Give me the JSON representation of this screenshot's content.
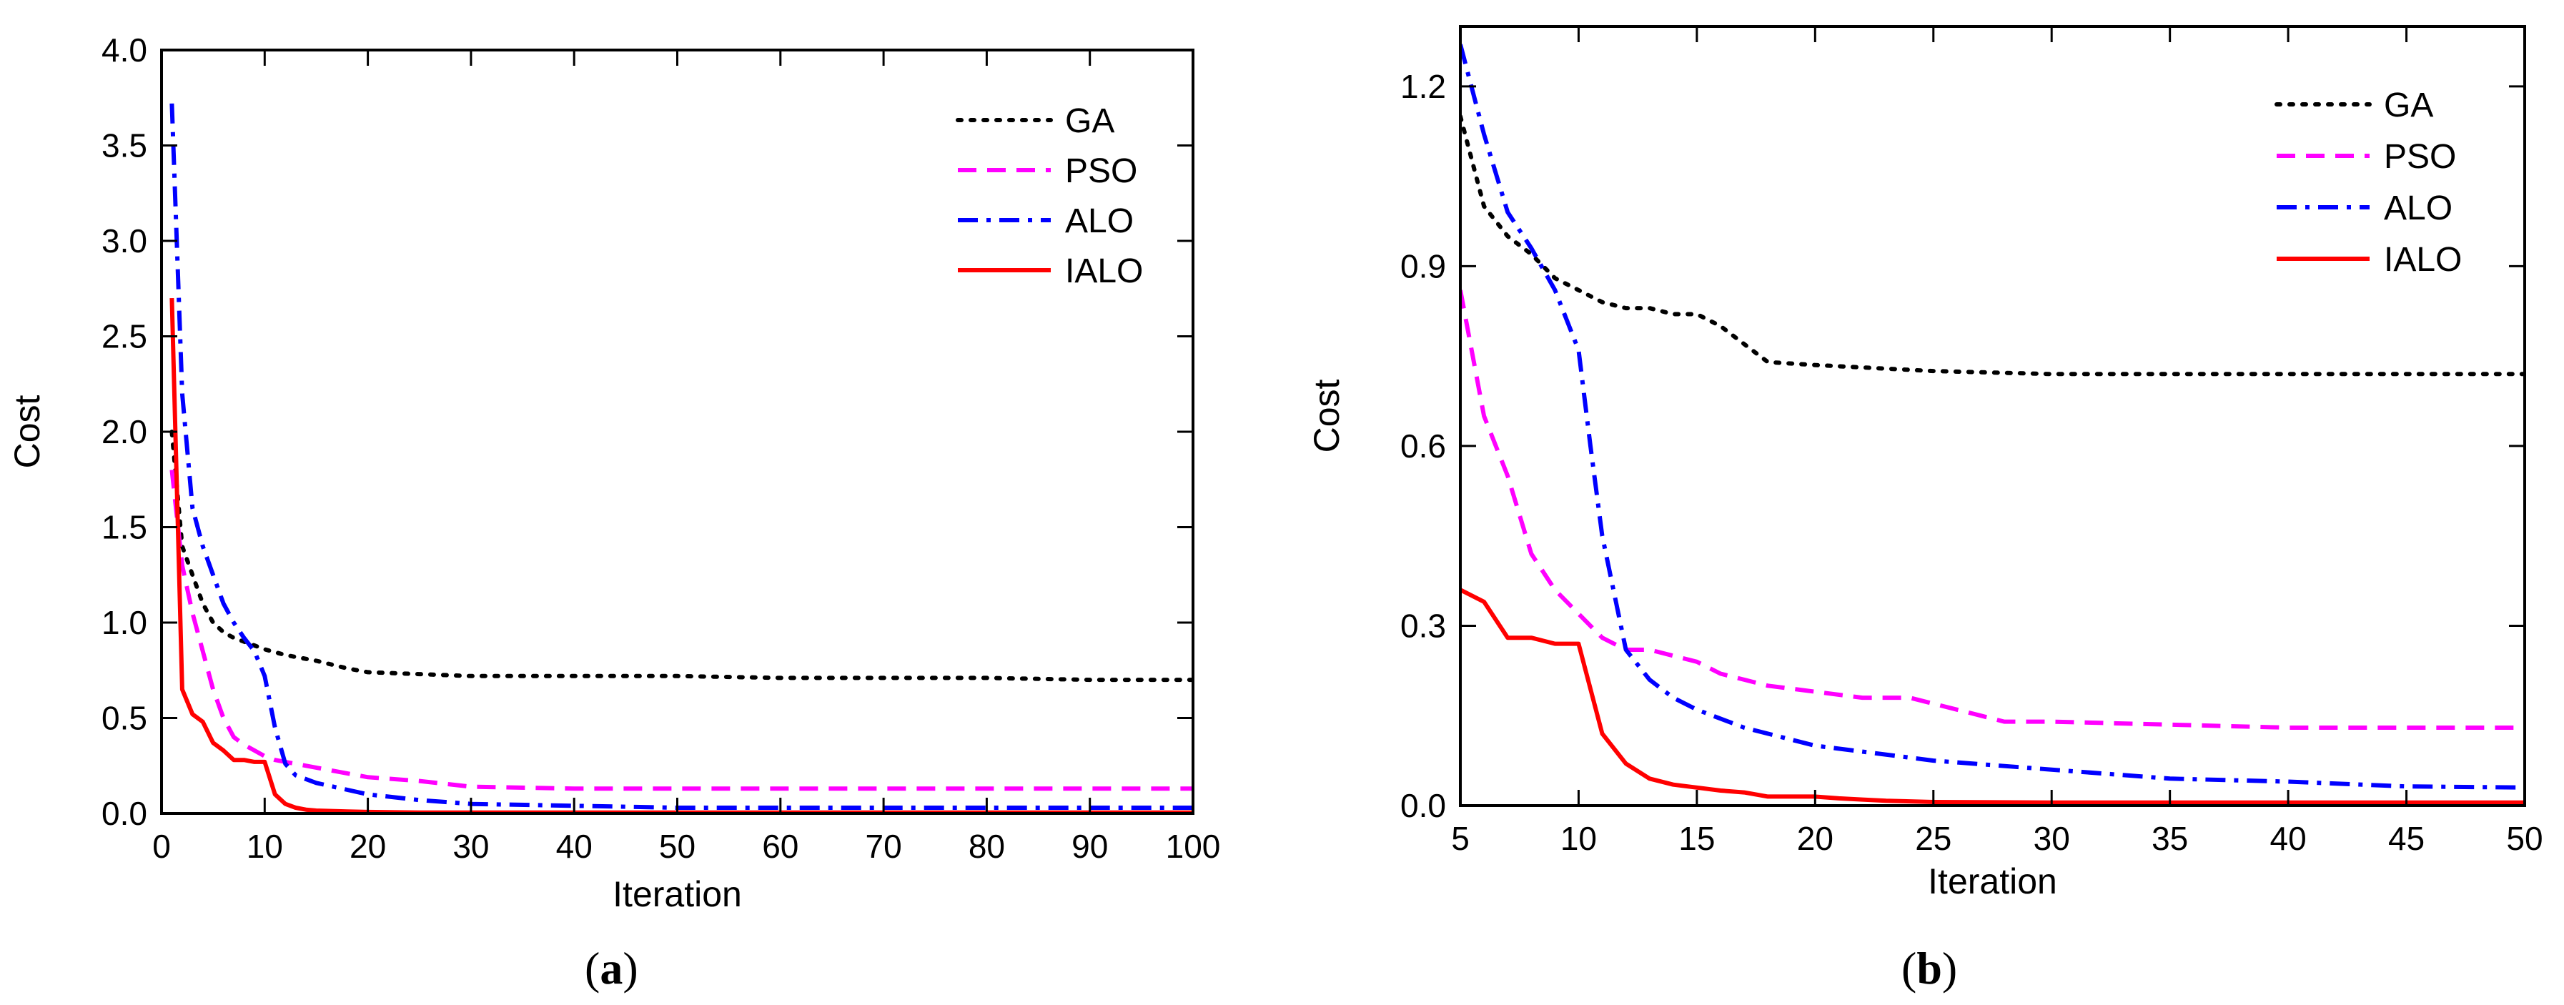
{
  "figure": {
    "panels": [
      {
        "paren_open": "(",
        "letter": "a",
        "paren_close": ")"
      },
      {
        "paren_open": "(",
        "letter": "b",
        "paren_close": ")"
      }
    ]
  },
  "colors": {
    "GA": "#000000",
    "PSO": "#ff00ff",
    "ALO": "#0000ff",
    "IALO": "#ff0000"
  },
  "chart_data": [
    {
      "type": "line",
      "title": "",
      "xlabel": "Iteration",
      "ylabel": "Cost",
      "xlim": [
        0,
        100
      ],
      "ylim": [
        0,
        4.0
      ],
      "xticks": [
        "0",
        "10",
        "20",
        "30",
        "40",
        "50",
        "60",
        "70",
        "80",
        "90",
        "100"
      ],
      "yticks": [
        "0.0",
        "0.5",
        "1.0",
        "1.5",
        "2.0",
        "2.5",
        "3.0",
        "3.5",
        "4.0"
      ],
      "legend": "top-right",
      "grid": false,
      "series": [
        {
          "name": "GA",
          "style": "dotted",
          "x": [
            1,
            2,
            3,
            4,
            5,
            6,
            7,
            8,
            9,
            10,
            12,
            15,
            18,
            20,
            25,
            30,
            40,
            50,
            60,
            70,
            80,
            90,
            100
          ],
          "y": [
            2.0,
            1.4,
            1.25,
            1.1,
            1.0,
            0.95,
            0.92,
            0.9,
            0.88,
            0.86,
            0.83,
            0.8,
            0.76,
            0.74,
            0.73,
            0.72,
            0.72,
            0.72,
            0.71,
            0.71,
            0.71,
            0.7,
            0.7
          ]
        },
        {
          "name": "PSO",
          "style": "dashed",
          "x": [
            1,
            2,
            3,
            4,
            5,
            6,
            7,
            8,
            9,
            10,
            11,
            12,
            15,
            20,
            25,
            30,
            40,
            50,
            60,
            70,
            80,
            90,
            100
          ],
          "y": [
            1.8,
            1.3,
            1.05,
            0.85,
            0.65,
            0.5,
            0.4,
            0.36,
            0.33,
            0.3,
            0.28,
            0.27,
            0.24,
            0.19,
            0.17,
            0.14,
            0.13,
            0.13,
            0.13,
            0.13,
            0.13,
            0.13,
            0.13
          ]
        },
        {
          "name": "ALO",
          "style": "dashdot",
          "x": [
            1,
            2,
            3,
            4,
            5,
            6,
            7,
            8,
            9,
            10,
            11,
            12,
            13,
            15,
            20,
            25,
            30,
            40,
            50,
            60,
            70,
            80,
            90,
            100
          ],
          "y": [
            3.72,
            2.2,
            1.6,
            1.4,
            1.25,
            1.1,
            1.0,
            0.92,
            0.85,
            0.72,
            0.45,
            0.26,
            0.2,
            0.16,
            0.1,
            0.07,
            0.05,
            0.04,
            0.03,
            0.03,
            0.03,
            0.03,
            0.03,
            0.03
          ]
        },
        {
          "name": "IALO",
          "style": "solid",
          "x": [
            1,
            2,
            3,
            4,
            5,
            6,
            7,
            8,
            9,
            10,
            11,
            12,
            13,
            14,
            15,
            18,
            20,
            25,
            30,
            40,
            50,
            60,
            70,
            80,
            90,
            100
          ],
          "y": [
            2.7,
            0.65,
            0.52,
            0.48,
            0.37,
            0.33,
            0.28,
            0.28,
            0.27,
            0.27,
            0.1,
            0.05,
            0.03,
            0.02,
            0.015,
            0.01,
            0.008,
            0.005,
            0.005,
            0.005,
            0.005,
            0.005,
            0.005,
            0.005,
            0.005,
            0.005
          ]
        }
      ]
    },
    {
      "type": "line",
      "title": "",
      "xlabel": "Iteration",
      "ylabel": "Cost",
      "xlim": [
        5,
        50
      ],
      "ylim": [
        0,
        1.3
      ],
      "xticks": [
        "5",
        "10",
        "15",
        "20",
        "25",
        "30",
        "35",
        "40",
        "45",
        "50"
      ],
      "yticks": [
        "0.0",
        "0.3",
        "0.6",
        "0.9",
        "1.2"
      ],
      "legend": "top-right",
      "grid": false,
      "series": [
        {
          "name": "GA",
          "style": "dotted",
          "x": [
            5,
            6,
            7,
            8,
            9,
            10,
            11,
            12,
            13,
            14,
            15,
            16,
            17,
            18,
            20,
            25,
            30,
            35,
            40,
            45,
            50
          ],
          "y": [
            1.15,
            1.0,
            0.95,
            0.92,
            0.88,
            0.86,
            0.84,
            0.83,
            0.83,
            0.82,
            0.82,
            0.8,
            0.77,
            0.74,
            0.735,
            0.725,
            0.72,
            0.72,
            0.72,
            0.72,
            0.72
          ]
        },
        {
          "name": "PSO",
          "style": "dashed",
          "x": [
            5,
            6,
            7,
            8,
            9,
            10,
            11,
            12,
            13,
            14,
            15,
            16,
            17,
            18,
            20,
            22,
            24,
            25,
            26,
            27,
            28,
            30,
            35,
            40,
            45,
            50
          ],
          "y": [
            0.86,
            0.65,
            0.55,
            0.42,
            0.36,
            0.32,
            0.28,
            0.26,
            0.26,
            0.25,
            0.24,
            0.22,
            0.21,
            0.2,
            0.19,
            0.18,
            0.18,
            0.17,
            0.16,
            0.15,
            0.14,
            0.14,
            0.135,
            0.13,
            0.13,
            0.13
          ]
        },
        {
          "name": "ALO",
          "style": "dashdot",
          "x": [
            5,
            6,
            7,
            8,
            9,
            10,
            10.5,
            11,
            12,
            13,
            14,
            15,
            17,
            20,
            25,
            30,
            35,
            40,
            45,
            50
          ],
          "y": [
            1.27,
            1.12,
            0.99,
            0.93,
            0.86,
            0.76,
            0.6,
            0.45,
            0.26,
            0.21,
            0.18,
            0.16,
            0.13,
            0.1,
            0.075,
            0.06,
            0.045,
            0.04,
            0.032,
            0.03
          ]
        },
        {
          "name": "IALO",
          "style": "solid",
          "x": [
            5,
            6,
            7,
            8,
            9,
            10,
            11,
            12,
            13,
            14,
            15,
            16,
            17,
            18,
            20,
            21,
            22,
            23,
            25,
            30,
            35,
            40,
            45,
            50
          ],
          "y": [
            0.36,
            0.34,
            0.28,
            0.28,
            0.27,
            0.27,
            0.12,
            0.07,
            0.045,
            0.035,
            0.03,
            0.025,
            0.022,
            0.015,
            0.015,
            0.012,
            0.01,
            0.008,
            0.006,
            0.005,
            0.005,
            0.005,
            0.005,
            0.005
          ]
        }
      ]
    }
  ]
}
